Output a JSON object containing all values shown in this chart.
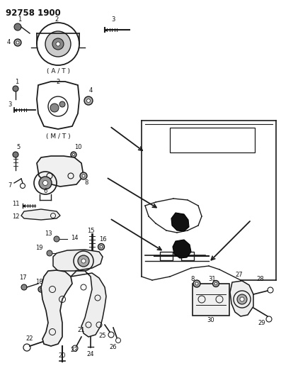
{
  "title_text": "92758 1900",
  "bg_color": "#ffffff",
  "line_color": "#1a1a1a",
  "text_color": "#111111",
  "title_fontsize": 8.5,
  "label_fontsize": 6.0,
  "small_label_fontsize": 5.5
}
